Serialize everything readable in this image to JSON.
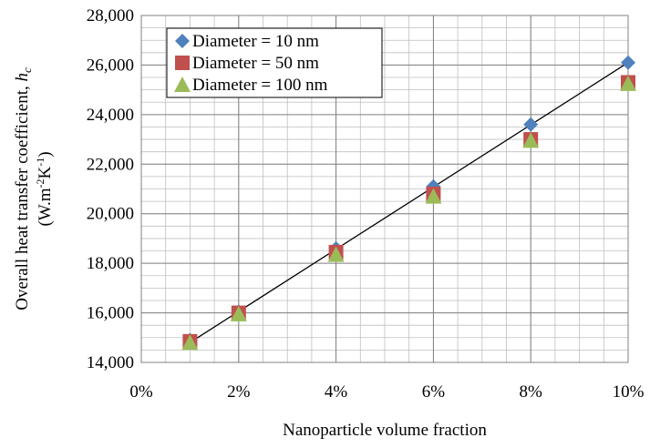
{
  "chart_data": {
    "type": "scatter",
    "xlabel": "Nanoparticle volume fraction",
    "ylabel": {
      "line1_main": "Overall heat transfer coefficient, ",
      "line1_sym": "h",
      "line1_sub": "c",
      "line2_pre": "(W.m",
      "line2_sup1": "-2",
      "line2_mid": "K",
      "line2_sup2": "-1",
      "line2_post": ")"
    },
    "x_ticks": [
      "0%",
      "2%",
      "4%",
      "6%",
      "8%",
      "10%"
    ],
    "y_ticks": [
      "14,000",
      "16,000",
      "18,000",
      "20,000",
      "22,000",
      "24,000",
      "26,000",
      "28,000"
    ],
    "xlim": [
      0,
      10
    ],
    "ylim": [
      14000,
      28000
    ],
    "x_unit": "percent",
    "grid": {
      "major": true,
      "minor": true
    },
    "legend_position": "top-left",
    "series": [
      {
        "name": "Diameter = 10 nm",
        "marker": "diamond",
        "color": "#4F81BD",
        "x": [
          1,
          2,
          4,
          6,
          8,
          10
        ],
        "y": [
          14900,
          16050,
          18600,
          21100,
          23600,
          26100
        ]
      },
      {
        "name": "Diameter = 50 nm",
        "marker": "square",
        "color": "#C0504D",
        "x": [
          1,
          2,
          4,
          6,
          8,
          10
        ],
        "y": [
          14850,
          16000,
          18450,
          20800,
          23000,
          25300
        ]
      },
      {
        "name": "Diameter = 100 nm",
        "marker": "triangle",
        "color": "#9BBB59",
        "x": [
          1,
          2,
          4,
          6,
          8,
          10
        ],
        "y": [
          14800,
          15950,
          18350,
          20700,
          22950,
          25250
        ]
      }
    ],
    "trendline": {
      "x": [
        1,
        10
      ],
      "y": [
        14800,
        26100
      ],
      "color": "#000000"
    }
  }
}
